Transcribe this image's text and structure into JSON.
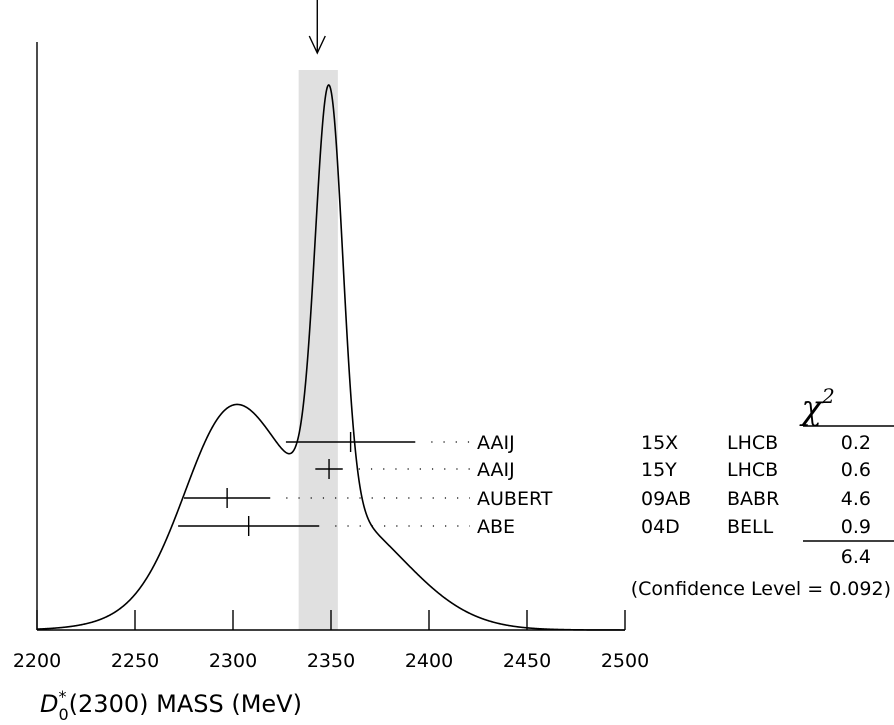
{
  "chart_data": {
    "type": "ideogram",
    "x_axis": {
      "label_base": "D",
      "label_sup": "*",
      "label_sub": "0",
      "label_rest": "(2300) MASS (MeV)",
      "range": [
        2200,
        2500
      ],
      "major_ticks": [
        2200,
        2250,
        2300,
        2350,
        2400,
        2450,
        2500
      ],
      "tick_labels": [
        "2200",
        "2250",
        "2300",
        "2350",
        "2400",
        "2450",
        "2500"
      ]
    },
    "fit": {
      "value": 2343,
      "band": [
        2333.5,
        2353.5
      ],
      "arrow_at": 2343
    },
    "measurements": [
      {
        "author": "AAIJ",
        "ref": "15X",
        "experiment": "LHCB",
        "value": 2360,
        "error": 33,
        "chi2": "0.2"
      },
      {
        "author": "AAIJ",
        "ref": "15Y",
        "experiment": "LHCB",
        "value": 2349,
        "error": 7,
        "chi2": "0.6"
      },
      {
        "author": "AUBERT",
        "ref": "09AB",
        "experiment": "BABR",
        "value": 2297,
        "error": 22,
        "chi2": "4.6"
      },
      {
        "author": "ABE",
        "ref": "04D",
        "experiment": "BELL",
        "value": 2308,
        "error": 36,
        "chi2": "0.9"
      }
    ],
    "chi2_header": "χ",
    "chi2_header_sup": "2",
    "chi2_total": "6.4",
    "confidence_level": "(Confidence Level = 0.092)"
  }
}
